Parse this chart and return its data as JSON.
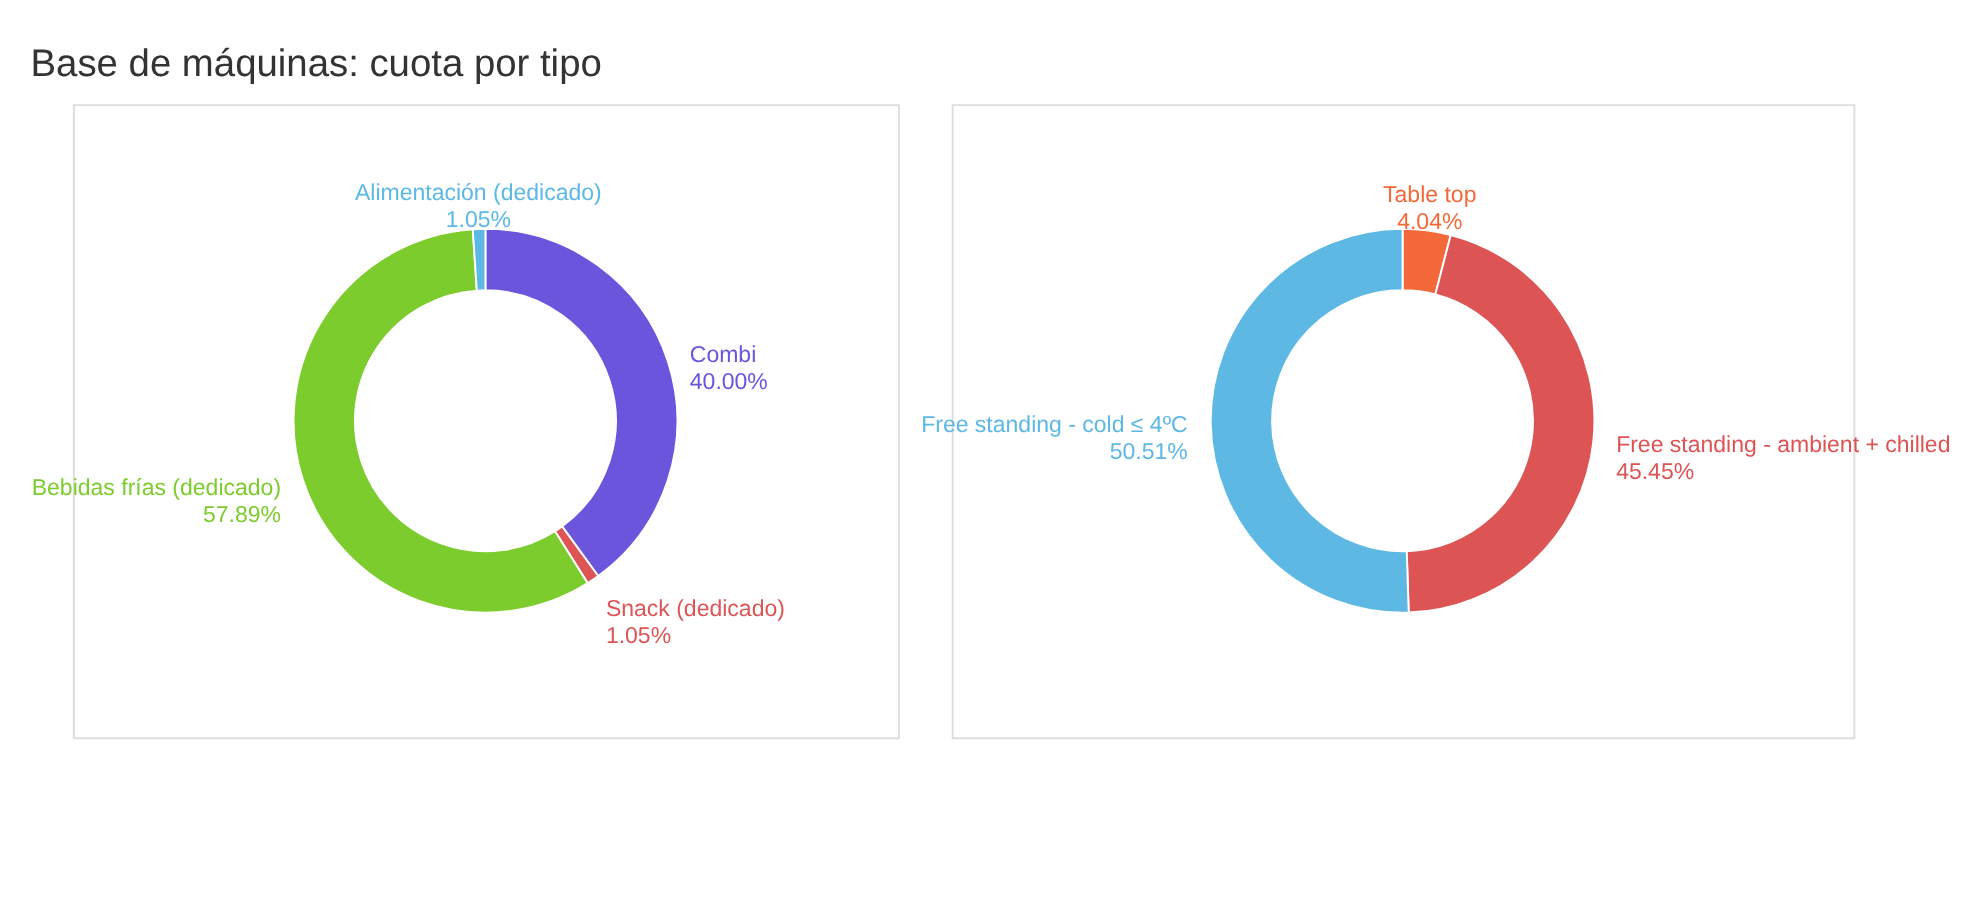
{
  "chart_data": [
    {
      "type": "donut",
      "title": "Base de máquinas: cuota por tipo",
      "categories": [
        "Combi",
        "Snack (dedicado)",
        "Bebidas frías (dedicado)",
        "Alimentación (dedicado)"
      ],
      "values": [
        40.0,
        1.05,
        57.89,
        1.05
      ],
      "value_labels": [
        "40.00%",
        "1.05%",
        "57.89%",
        "1.05%"
      ],
      "colors": [
        "#6b55dd",
        "#dd5555",
        "#7ccc2e",
        "#5cb8e4"
      ],
      "legend": false
    },
    {
      "type": "donut",
      "categories": [
        "Table top",
        "Free standing - ambient + chilled",
        "Free standing - cold ≤ 4ºC"
      ],
      "values": [
        4.04,
        45.45,
        50.51
      ],
      "value_labels": [
        "4.04%",
        "45.45%",
        "50.51%"
      ],
      "colors": [
        "#f4693a",
        "#dd5454",
        "#5db8e4"
      ],
      "legend": false
    }
  ]
}
